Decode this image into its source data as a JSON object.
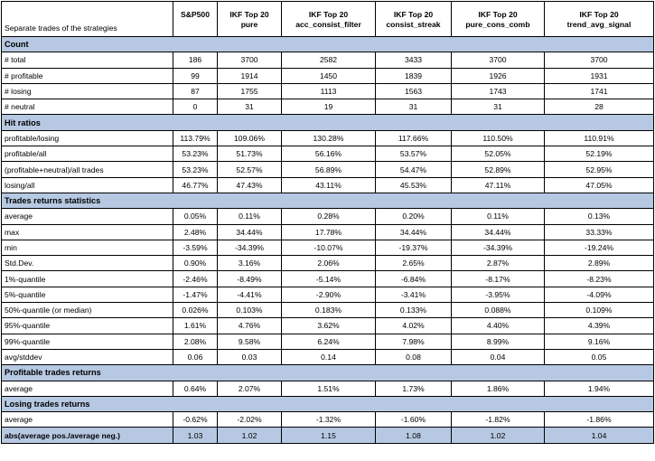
{
  "header": {
    "title": "Separate trades of the strategies",
    "columns": [
      {
        "line1": "S&P500",
        "line2": ""
      },
      {
        "line1": "IKF Top 20",
        "line2": "pure"
      },
      {
        "line1": "IKF Top 20",
        "line2": "acc_consist_filter"
      },
      {
        "line1": "IKF Top 20",
        "line2": "consist_streak"
      },
      {
        "line1": "IKF Top 20",
        "line2": "pure_cons_comb"
      },
      {
        "line1": "IKF Top 20",
        "line2": "trend_avg_signal"
      }
    ]
  },
  "sections": [
    {
      "title": "Count",
      "rows": [
        {
          "label": "# total",
          "values": [
            "186",
            "3700",
            "2582",
            "3433",
            "3700",
            "3700"
          ]
        },
        {
          "label": "# profitable",
          "values": [
            "99",
            "1914",
            "1450",
            "1839",
            "1926",
            "1931"
          ]
        },
        {
          "label": "# losing",
          "values": [
            "87",
            "1755",
            "1113",
            "1563",
            "1743",
            "1741"
          ]
        },
        {
          "label": "# neutral",
          "values": [
            "0",
            "31",
            "19",
            "31",
            "31",
            "28"
          ]
        }
      ]
    },
    {
      "title": "Hit ratios",
      "rows": [
        {
          "label": "profitable/losing",
          "values": [
            "113.79%",
            "109.06%",
            "130.28%",
            "117.66%",
            "110.50%",
            "110.91%"
          ]
        },
        {
          "label": "profitable/all",
          "values": [
            "53.23%",
            "51.73%",
            "56.16%",
            "53.57%",
            "52.05%",
            "52.19%"
          ]
        },
        {
          "label": "(profitable+neutral)/all trades",
          "values": [
            "53.23%",
            "52.57%",
            "56.89%",
            "54.47%",
            "52.89%",
            "52.95%"
          ]
        },
        {
          "label": "losing/all",
          "values": [
            "46.77%",
            "47.43%",
            "43.11%",
            "45.53%",
            "47.11%",
            "47.05%"
          ]
        }
      ]
    },
    {
      "title": "Trades returns statistics",
      "rows": [
        {
          "label": "average",
          "values": [
            "0.05%",
            "0.11%",
            "0.28%",
            "0.20%",
            "0.11%",
            "0.13%"
          ]
        },
        {
          "label": "max",
          "values": [
            "2.48%",
            "34.44%",
            "17.78%",
            "34.44%",
            "34.44%",
            "33.33%"
          ]
        },
        {
          "label": "min",
          "values": [
            "-3.59%",
            "-34.39%",
            "-10.07%",
            "-19.37%",
            "-34.39%",
            "-19.24%"
          ]
        },
        {
          "label": "Std.Dev.",
          "values": [
            "0.90%",
            "3.16%",
            "2.06%",
            "2.65%",
            "2.87%",
            "2.89%"
          ]
        },
        {
          "label": "1%-quantile",
          "values": [
            "-2.46%",
            "-8.49%",
            "-5.14%",
            "-6.84%",
            "-8.17%",
            "-8.23%"
          ]
        },
        {
          "label": "5%-quantile",
          "values": [
            "-1.47%",
            "-4.41%",
            "-2.90%",
            "-3.41%",
            "-3.95%",
            "-4.09%"
          ]
        },
        {
          "label": "50%-quantile (or median)",
          "values": [
            "0.026%",
            "0.103%",
            "0.183%",
            "0.133%",
            "0.088%",
            "0.109%"
          ]
        },
        {
          "label": "95%-quantile",
          "values": [
            "1.61%",
            "4.76%",
            "3.62%",
            "4.02%",
            "4.40%",
            "4.39%"
          ]
        },
        {
          "label": "99%-quantile",
          "values": [
            "2.08%",
            "9.58%",
            "6.24%",
            "7.98%",
            "8.99%",
            "9.16%"
          ]
        },
        {
          "label": "avg/stddev",
          "values": [
            "0.06",
            "0.03",
            "0.14",
            "0.08",
            "0.04",
            "0.05"
          ]
        }
      ]
    },
    {
      "title": "Profitable trades returns",
      "rows": [
        {
          "label": "average",
          "values": [
            "0.64%",
            "2.07%",
            "1.51%",
            "1.73%",
            "1.86%",
            "1.94%"
          ]
        }
      ]
    },
    {
      "title": "Losing trades returns",
      "rows": [
        {
          "label": "average",
          "values": [
            "-0.62%",
            "-2.02%",
            "-1.32%",
            "-1.60%",
            "-1.82%",
            "-1.86%"
          ]
        }
      ]
    }
  ],
  "footer": {
    "label": "abs(average pos./average neg.)",
    "values": [
      "1.03",
      "1.02",
      "1.15",
      "1.08",
      "1.02",
      "1.04"
    ]
  },
  "colors": {
    "section_fill": "#b7c9e2",
    "border": "#000000"
  }
}
